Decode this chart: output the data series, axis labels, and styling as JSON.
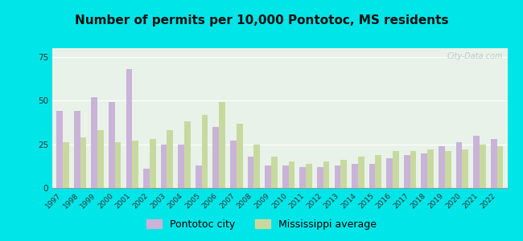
{
  "title": "Number of permits per 10,000 Pontotoc, MS residents",
  "years": [
    1997,
    1998,
    1999,
    2000,
    2001,
    2002,
    2003,
    2004,
    2005,
    2006,
    2007,
    2008,
    2009,
    2010,
    2011,
    2012,
    2013,
    2014,
    2015,
    2016,
    2017,
    2018,
    2019,
    2020,
    2021,
    2022
  ],
  "pontotoc": [
    44,
    44,
    52,
    49,
    68,
    11,
    25,
    25,
    13,
    35,
    27,
    18,
    13,
    13,
    12,
    12,
    13,
    14,
    14,
    17,
    19,
    20,
    24,
    26,
    30,
    28
  ],
  "mississippi": [
    26,
    29,
    33,
    26,
    27,
    28,
    33,
    38,
    42,
    49,
    37,
    25,
    18,
    15,
    14,
    15,
    16,
    18,
    19,
    21,
    21,
    22,
    21,
    22,
    25,
    24
  ],
  "pontotoc_color": "#c9b3d9",
  "mississippi_color": "#c8d9a0",
  "background_outer": "#00e5e8",
  "background_inner": "#e8f2e8",
  "ylim": [
    0,
    80
  ],
  "yticks": [
    0,
    25,
    50,
    75
  ],
  "title_fontsize": 11,
  "legend_fontsize": 9,
  "watermark": "City-Data.com"
}
